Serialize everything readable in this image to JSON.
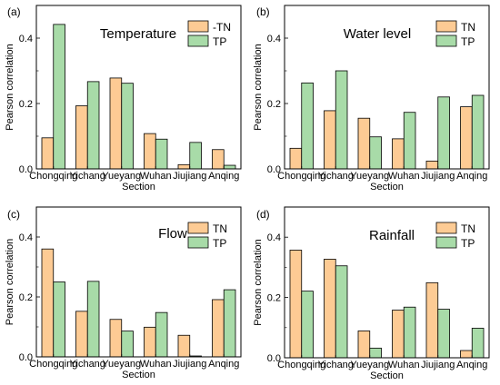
{
  "chart_data": [
    {
      "panel_label": "(a)",
      "type": "bar",
      "title": "Temperature",
      "xlabel": "Section",
      "ylabel": "Pearson correlation",
      "categories": [
        "Chongqing",
        "Yichang",
        "Yueyang",
        "Wuhan",
        "Jiujiang",
        "Anqing"
      ],
      "series": [
        {
          "name": "-TN",
          "color": "#FDCB94",
          "values": [
            0.095,
            0.193,
            0.278,
            0.108,
            0.013,
            0.059
          ]
        },
        {
          "name": "TP",
          "color": "#A8DBA8",
          "values": [
            0.442,
            0.267,
            0.262,
            0.091,
            0.081,
            0.011
          ]
        }
      ],
      "ylim": [
        0,
        0.5
      ],
      "yticks": [
        0.0,
        0.2,
        0.4
      ],
      "ytick_labels": [
        "0.0",
        "0.2",
        "0.4"
      ],
      "legend_position": "top-right",
      "grid": false
    },
    {
      "panel_label": "(b)",
      "type": "bar",
      "title": "Water level",
      "xlabel": "Section",
      "ylabel": "Pearson correlation",
      "categories": [
        "Chongqing",
        "Yichang",
        "Yueyang",
        "Wuhan",
        "Jiujiang",
        "Anqing"
      ],
      "series": [
        {
          "name": "TN",
          "color": "#FDCB94",
          "values": [
            0.063,
            0.178,
            0.155,
            0.092,
            0.024,
            0.19
          ]
        },
        {
          "name": "TP",
          "color": "#A8DBA8",
          "values": [
            0.263,
            0.3,
            0.098,
            0.173,
            0.22,
            0.225
          ]
        }
      ],
      "ylim": [
        0,
        0.5
      ],
      "yticks": [
        0.0,
        0.2,
        0.4
      ],
      "ytick_labels": [
        "0.0",
        "0.2",
        "0.4"
      ],
      "legend_position": "top-right",
      "grid": false
    },
    {
      "panel_label": "(c)",
      "type": "bar",
      "title": "Flow",
      "xlabel": "Section",
      "ylabel": "Pearson correlation",
      "categories": [
        "Chongqing",
        "Yichang",
        "Yueyang",
        "Wuhan",
        "Jiujiang",
        "Anqing"
      ],
      "series": [
        {
          "name": "TN",
          "color": "#FDCB94",
          "values": [
            0.36,
            0.152,
            0.125,
            0.099,
            0.072,
            0.191
          ]
        },
        {
          "name": "TP",
          "color": "#A8DBA8",
          "values": [
            0.25,
            0.252,
            0.086,
            0.148,
            0.003,
            0.224
          ]
        }
      ],
      "ylim": [
        0,
        0.5
      ],
      "yticks": [
        0.0,
        0.2,
        0.4
      ],
      "ytick_labels": [
        "0.0",
        "0.2",
        "0.4"
      ],
      "legend_position": "top-right",
      "grid": false
    },
    {
      "panel_label": "(d)",
      "type": "bar",
      "title": "Rainfall",
      "xlabel": "Section",
      "ylabel": "Pearson correlation",
      "categories": [
        "Chongqing",
        "Yichang",
        "Yueyang",
        "Wuhan",
        "Jiujiang",
        "Anqing"
      ],
      "series": [
        {
          "name": "TN",
          "color": "#FDCB94",
          "values": [
            0.357,
            0.327,
            0.089,
            0.158,
            0.249,
            0.024
          ]
        },
        {
          "name": "TP",
          "color": "#A8DBA8",
          "values": [
            0.221,
            0.305,
            0.032,
            0.168,
            0.161,
            0.098
          ]
        }
      ],
      "ylim": [
        0,
        0.5
      ],
      "yticks": [
        0.0,
        0.2,
        0.4
      ],
      "ytick_labels": [
        "0.0",
        "0.2",
        "0.4"
      ],
      "legend_position": "top-right",
      "grid": false
    }
  ]
}
